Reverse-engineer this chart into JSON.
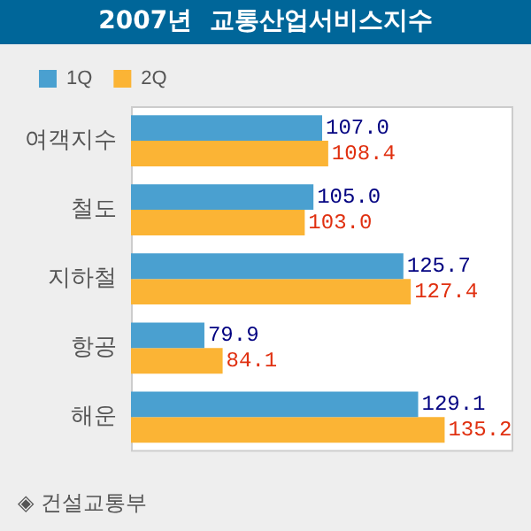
{
  "chart_data": {
    "type": "bar",
    "orientation": "horizontal",
    "title": "2007년  교통산업서비스지수",
    "categories": [
      "여객지수",
      "철도",
      "지하철",
      "항공",
      "해운"
    ],
    "series": [
      {
        "name": "1Q",
        "color": "#4aa0d0",
        "values": [
          107.0,
          105.0,
          125.7,
          79.9,
          129.1
        ],
        "value_labels": [
          "107.0",
          "105.0",
          "125.7",
          "79.9",
          "129.1"
        ]
      },
      {
        "name": "2Q",
        "color": "#fbb435",
        "values": [
          108.4,
          103.0,
          127.4,
          84.1,
          135.2
        ],
        "value_labels": [
          "108.4",
          "103.0",
          "127.4",
          "84.1",
          "135.2"
        ]
      }
    ],
    "xlim": [
      63,
      151
    ],
    "tick_labels": "y",
    "grid": false,
    "legend": "top left",
    "annotations": [
      "◈ 건설교통부"
    ]
  }
}
